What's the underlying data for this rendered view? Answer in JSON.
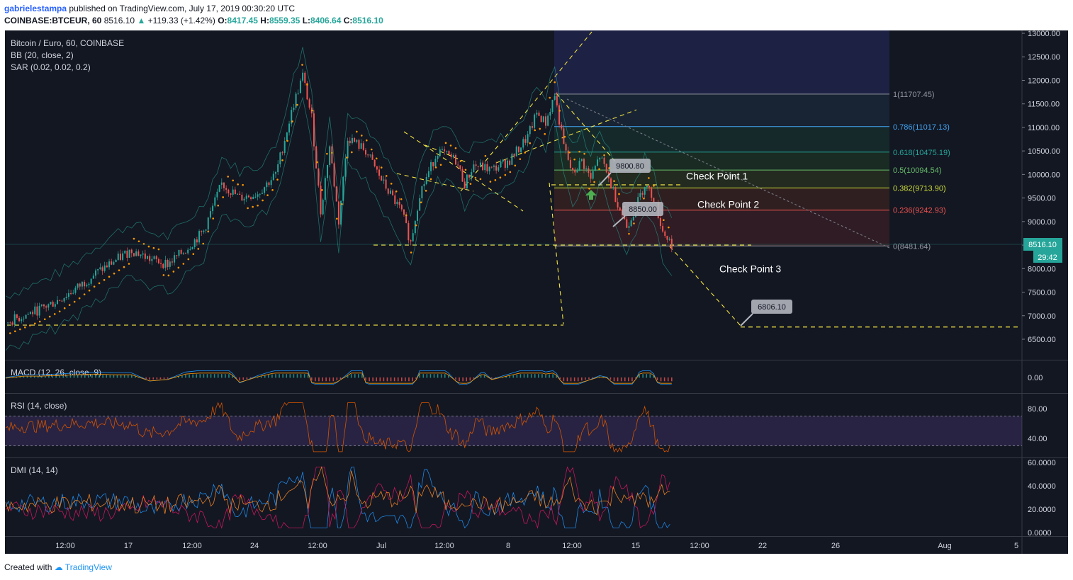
{
  "header": {
    "author": "gabrielestampa",
    "published_text": "published on TradingView.com, July 17, 2019 00:30:20 UTC",
    "symbol": "COINBASE:BTCEUR, 60",
    "last": "8516.10",
    "change": "+119.33 (+1.42%)",
    "open_label": "O:",
    "open": "8417.45",
    "high_label": "H:",
    "high": "8559.35",
    "low_label": "L:",
    "low": "8406.64",
    "close_label": "C:",
    "close": "8516.10"
  },
  "footer": {
    "created_with": "Created with",
    "brand": "TradingView"
  },
  "colors": {
    "background": "#131722",
    "candle_up": "#26a69a",
    "candle_down": "#ef5350",
    "sar": "#ff9800",
    "annotation": "#f5e642",
    "rsi": "#d35400",
    "dmi_plus": "#1e88e5",
    "dmi_minus": "#c2185b",
    "adx": "#e67e22"
  },
  "chart_data": [
    {
      "type": "candlestick",
      "title": "Bitcoin / Euro, 60, COINBASE",
      "indicators": [
        "BB (20, close, 2)",
        "SAR (0.02, 0.02, 0.2)"
      ],
      "ylim": [
        6000,
        13000
      ],
      "y_ticks": [
        "13000.00",
        "12500.00",
        "12000.00",
        "11500.00",
        "11000.00",
        "10500.00",
        "10000.00",
        "9500.00",
        "9000.00",
        "8500.00",
        "8000.00",
        "7500.00",
        "7000.00",
        "6500.00"
      ],
      "x_ticks": [
        "12:00",
        "17",
        "12:00",
        "24",
        "12:00",
        "Jul",
        "12:00",
        "8",
        "12:00",
        "15",
        "12:00",
        "22",
        "26",
        "Aug",
        "5"
      ],
      "price_path": [
        {
          "t": 0,
          "p": 6850
        },
        {
          "t": 2,
          "p": 7000
        },
        {
          "t": 4,
          "p": 7150
        },
        {
          "t": 6,
          "p": 7350
        },
        {
          "t": 8,
          "p": 7600
        },
        {
          "t": 10,
          "p": 7900
        },
        {
          "t": 12,
          "p": 8150
        },
        {
          "t": 14,
          "p": 8400
        },
        {
          "t": 16,
          "p": 8200
        },
        {
          "t": 18,
          "p": 8100
        },
        {
          "t": 20,
          "p": 8400
        },
        {
          "t": 22,
          "p": 8800
        },
        {
          "t": 24,
          "p": 9800
        },
        {
          "t": 26,
          "p": 9500
        },
        {
          "t": 28,
          "p": 9600
        },
        {
          "t": 30,
          "p": 10000
        },
        {
          "t": 32,
          "p": 11500
        },
        {
          "t": 33,
          "p": 12100
        },
        {
          "t": 34,
          "p": 11200
        },
        {
          "t": 35,
          "p": 9200
        },
        {
          "t": 36,
          "p": 10600
        },
        {
          "t": 37,
          "p": 9000
        },
        {
          "t": 38,
          "p": 10800
        },
        {
          "t": 40,
          "p": 10500
        },
        {
          "t": 42,
          "p": 9800
        },
        {
          "t": 44,
          "p": 9200
        },
        {
          "t": 45,
          "p": 8550
        },
        {
          "t": 46,
          "p": 9600
        },
        {
          "t": 48,
          "p": 10500
        },
        {
          "t": 50,
          "p": 10300
        },
        {
          "t": 51,
          "p": 9800
        },
        {
          "t": 52,
          "p": 10200
        },
        {
          "t": 54,
          "p": 10100
        },
        {
          "t": 56,
          "p": 10300
        },
        {
          "t": 58,
          "p": 10800
        },
        {
          "t": 59,
          "p": 11300
        },
        {
          "t": 60,
          "p": 11100
        },
        {
          "t": 61,
          "p": 11700
        },
        {
          "t": 62,
          "p": 10600
        },
        {
          "t": 63,
          "p": 10000
        },
        {
          "t": 64,
          "p": 10300
        },
        {
          "t": 65,
          "p": 9900
        },
        {
          "t": 66,
          "p": 10400
        },
        {
          "t": 67,
          "p": 9900
        },
        {
          "t": 68,
          "p": 9400
        },
        {
          "t": 69,
          "p": 8900
        },
        {
          "t": 70,
          "p": 9300
        },
        {
          "t": 71,
          "p": 9800
        },
        {
          "t": 72,
          "p": 9500
        },
        {
          "t": 73,
          "p": 8800
        },
        {
          "t": 74,
          "p": 8516
        }
      ],
      "fibonacci": [
        {
          "label": "1(11707.45)",
          "value": 11707.45,
          "color": "#9598a1"
        },
        {
          "label": "0.786(11017.13)",
          "value": 11017.13,
          "color": "#42a5f5"
        },
        {
          "label": "0.618(10475.19)",
          "value": 10475.19,
          "color": "#26a69a"
        },
        {
          "label": "0.5(10094.54)",
          "value": 10094.54,
          "color": "#66bb6a"
        },
        {
          "label": "0.382(9713.90)",
          "value": 9713.9,
          "color": "#cddc39"
        },
        {
          "label": "0.236(9242.93)",
          "value": 9242.93,
          "color": "#ef5350"
        },
        {
          "label": "0(8481.64)",
          "value": 8481.64,
          "color": "#9598a1"
        }
      ],
      "annotations": [
        {
          "text": "Check Point 1",
          "value": 9970
        },
        {
          "text": "Check Point 2",
          "value": 9370
        },
        {
          "text": "Check Point 3",
          "value": 8000
        }
      ],
      "price_callouts": [
        "9800.80",
        "8850.00",
        "6806.10"
      ],
      "last_price_label": "8516.10",
      "countdown_label": "29:42",
      "support_lines": [
        6800,
        8500,
        6750
      ]
    },
    {
      "type": "line",
      "title": "MACD (12, 26, close, 9)",
      "y_ticks": [
        "0.00"
      ]
    },
    {
      "type": "line",
      "title": "RSI (14, close)",
      "ylim": [
        20,
        90
      ],
      "y_ticks": [
        "80.00",
        "40.00"
      ],
      "bands": [
        30,
        70
      ]
    },
    {
      "type": "line",
      "title": "DMI (14, 14)",
      "ylim": [
        0,
        60
      ],
      "y_ticks": [
        "60.0000",
        "40.0000",
        "20.0000",
        "0.0000"
      ]
    }
  ]
}
